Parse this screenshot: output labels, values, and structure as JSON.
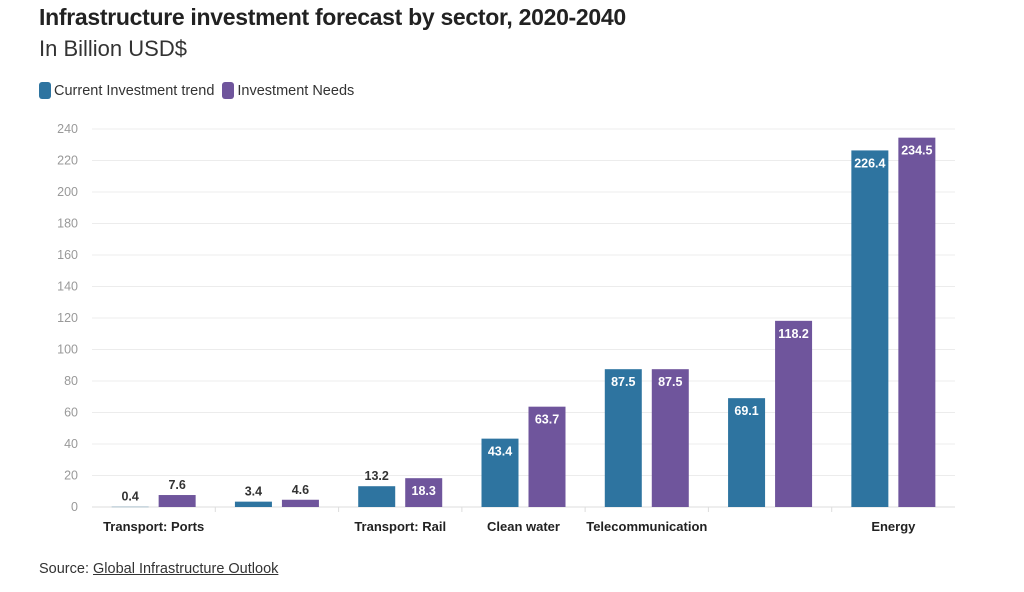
{
  "chart_data": {
    "type": "bar",
    "title": "Infrastructure investment forecast by sector, 2020-2040",
    "subtitle": "In Billion USD$",
    "categories": [
      "Transport: Ports",
      "",
      "Transport: Rail",
      "Clean water",
      "Telecommunication",
      "",
      "Energy"
    ],
    "series": [
      {
        "name": "Current Investment trend",
        "color": "#2e74a0",
        "values": [
          0.4,
          3.4,
          13.2,
          43.4,
          87.5,
          69.1,
          226.4
        ]
      },
      {
        "name": "Investment Needs",
        "color": "#6f559c",
        "values": [
          7.6,
          4.6,
          18.3,
          63.7,
          87.5,
          118.2,
          234.5
        ]
      }
    ],
    "ylim": [
      0,
      240
    ],
    "yticks": [
      0,
      20,
      40,
      60,
      80,
      100,
      120,
      140,
      160,
      180,
      200,
      220,
      240
    ],
    "grid": true,
    "legend": "top-left",
    "xlabel": "",
    "ylabel": ""
  },
  "source": {
    "label": "Source:",
    "link": "Global Infrastructure Outlook"
  }
}
